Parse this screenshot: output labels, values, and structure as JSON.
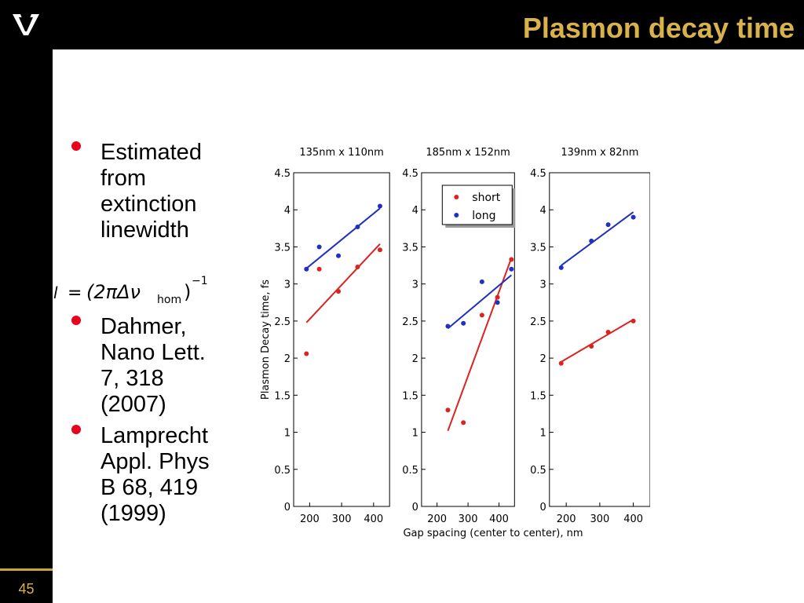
{
  "slide": {
    "title": "Plasmon decay time",
    "slide_number": "45",
    "colors": {
      "background_bar": "#000000",
      "title_gold": "#d9b24c",
      "bullet_red": "#e8001c"
    },
    "logo_icon": "vanderbilt-v-icon"
  },
  "bullets": [
    {
      "lines": [
        "Estimated",
        "from",
        "extinction",
        "linewidth"
      ]
    },
    {
      "lines": [
        "Dahmer,",
        "Nano Lett.",
        "7, 318",
        "(2007)"
      ]
    },
    {
      "lines": [
        "Lamprecht",
        "Appl. Phys",
        "B 68, 419",
        "(1999)"
      ]
    }
  ],
  "formula": {
    "lhs": "l",
    "eq": "=",
    "body": "(2πΔν",
    "subscript": "hom",
    "close": ")",
    "exponent": "−1"
  },
  "chart_data": [
    {
      "type": "scatter",
      "title": "135nm x 110nm",
      "ylabel": "Plasmon Decay time, fs",
      "xlabel": "",
      "xlim": [
        150,
        450
      ],
      "ylim": [
        0,
        4.5
      ],
      "xticks": [
        200,
        300,
        400
      ],
      "yticks": [
        0,
        0.5,
        1,
        1.5,
        2,
        2.5,
        3,
        3.5,
        4,
        4.5
      ],
      "series": [
        {
          "color": "#dd2222",
          "x": [
            190,
            230,
            290,
            350,
            420
          ],
          "y": [
            2.06,
            3.2,
            2.9,
            3.23,
            3.46
          ],
          "fit": [
            [
              190,
              2.48
            ],
            [
              420,
              3.54
            ]
          ]
        },
        {
          "color": "#2030c0",
          "x": [
            190,
            230,
            290,
            350,
            420
          ],
          "y": [
            3.2,
            3.5,
            3.38,
            3.77,
            4.05
          ],
          "fit": [
            [
              190,
              3.21
            ],
            [
              420,
              4.02
            ]
          ]
        }
      ]
    },
    {
      "type": "scatter",
      "title": "185nm x 152nm",
      "ylabel": "",
      "xlabel": "Gap spacing (center to center), nm",
      "xlim": [
        150,
        450
      ],
      "ylim": [
        0,
        4.5
      ],
      "xticks": [
        200,
        300,
        400
      ],
      "yticks": [
        0,
        0.5,
        1,
        1.5,
        2,
        2.5,
        3,
        3.5,
        4,
        4.5
      ],
      "legend": {
        "placement": "top-right",
        "entries": [
          {
            "label": "short",
            "color": "#dd2222"
          },
          {
            "label": "long",
            "color": "#2030c0"
          }
        ]
      },
      "series": [
        {
          "name": "short",
          "color": "#dd2222",
          "x": [
            235,
            285,
            345,
            395,
            440
          ],
          "y": [
            1.3,
            1.13,
            2.58,
            2.82,
            3.33
          ],
          "fit": [
            [
              235,
              1.02
            ],
            [
              440,
              3.35
            ]
          ]
        },
        {
          "name": "long",
          "color": "#2030c0",
          "x": [
            235,
            285,
            345,
            395,
            440
          ],
          "y": [
            2.43,
            2.47,
            3.03,
            2.75,
            3.2
          ],
          "fit": [
            [
              235,
              2.4
            ],
            [
              440,
              3.12
            ]
          ]
        }
      ]
    },
    {
      "type": "scatter",
      "title": "139nm x 82nm",
      "ylabel": "",
      "xlabel": "",
      "xlim": [
        150,
        450
      ],
      "ylim": [
        0,
        4.5
      ],
      "xticks": [
        200,
        300,
        400
      ],
      "yticks": [
        0,
        0.5,
        1,
        1.5,
        2,
        2.5,
        3,
        3.5,
        4,
        4.5
      ],
      "series": [
        {
          "color": "#dd2222",
          "x": [
            185,
            275,
            325,
            400
          ],
          "y": [
            1.93,
            2.16,
            2.35,
            2.5
          ],
          "fit": [
            [
              185,
              1.95
            ],
            [
              400,
              2.52
            ]
          ]
        },
        {
          "color": "#2030c0",
          "x": [
            185,
            275,
            325,
            400
          ],
          "y": [
            3.22,
            3.58,
            3.8,
            3.9
          ],
          "fit": [
            [
              185,
              3.25
            ],
            [
              400,
              3.97
            ]
          ]
        }
      ]
    }
  ]
}
